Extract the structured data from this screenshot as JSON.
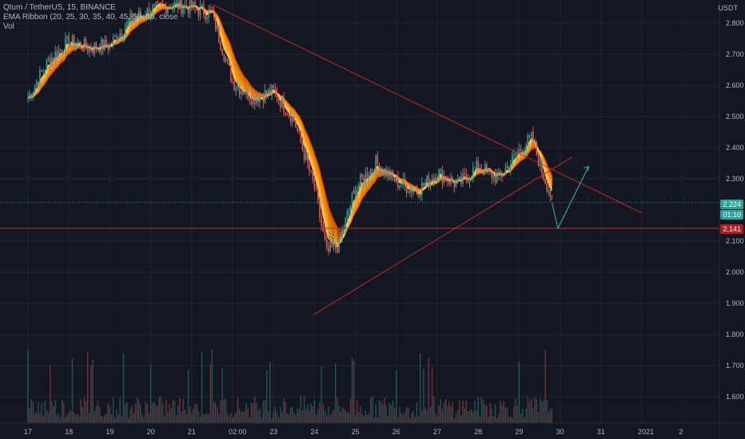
{
  "legend": {
    "symbol_line": "Qtum / TetherUS, 15, BINANCE",
    "ema_line": "EMA Ribbon (20, 25, 30, 35, 40, 45, 50, 55, close",
    "vol_line": "Vol"
  },
  "price_scale": {
    "currency": "USDT",
    "ticks": [
      "2.800",
      "2.700",
      "2.600",
      "2.500",
      "2.400",
      "2.300",
      "2.100",
      "2.000",
      "1.900",
      "1.800",
      "1.700",
      "1.600"
    ]
  },
  "time_scale": {
    "ticks": [
      "17",
      "18",
      "19",
      "20",
      "21",
      "02:00",
      "23",
      "24",
      "25",
      "26",
      "27",
      "28",
      "29",
      "30",
      "31",
      "2021",
      "2"
    ]
  },
  "tags": {
    "last_price": "2.224",
    "countdown": "01:10",
    "level_price": "2.141"
  },
  "colors": {
    "background": "#131722",
    "up_candle": "#26a69a",
    "down_candle": "#ef5350",
    "ribbon_outer": "#ff6d00",
    "ribbon_inner": "#ffd54f",
    "trendline": "#c62828",
    "projection": "#26a69a",
    "last_price_tag": "#26a69a",
    "level_tag": "#b71c1c"
  },
  "chart_data": {
    "type": "candlestick",
    "symbol": "Qtum / TetherUS",
    "timeframe": "15",
    "exchange": "BINANCE",
    "x": [
      17,
      17.5,
      18,
      18.5,
      19,
      19.5,
      20,
      20.5,
      21,
      21.5,
      22,
      22.5,
      23,
      23.5,
      24,
      24.3,
      24.6,
      25,
      25.5,
      26,
      26.5,
      27,
      27.5,
      28,
      28.5,
      29,
      29.3,
      29.6,
      29.8
    ],
    "close": [
      2.56,
      2.68,
      2.74,
      2.72,
      2.73,
      2.81,
      2.84,
      2.86,
      2.85,
      2.83,
      2.61,
      2.56,
      2.58,
      2.49,
      2.27,
      2.06,
      2.09,
      2.27,
      2.35,
      2.29,
      2.26,
      2.32,
      2.28,
      2.34,
      2.3,
      2.39,
      2.43,
      2.31,
      2.24
    ],
    "yrange": [
      1.55,
      2.86
    ],
    "horizontal_level": 2.141,
    "last_price": 2.224,
    "trendlines": [
      {
        "name": "descending resistance",
        "from": [
          21.5,
          2.86
        ],
        "to": [
          32.0,
          2.19
        ]
      },
      {
        "name": "ascending support",
        "from": [
          24.0,
          1.865
        ],
        "to": [
          30.3,
          2.37
        ]
      }
    ],
    "projection": [
      [
        29.8,
        2.224
      ],
      [
        29.95,
        2.141
      ],
      [
        30.7,
        2.34
      ]
    ],
    "volume_note": "volume bars along bottom"
  }
}
